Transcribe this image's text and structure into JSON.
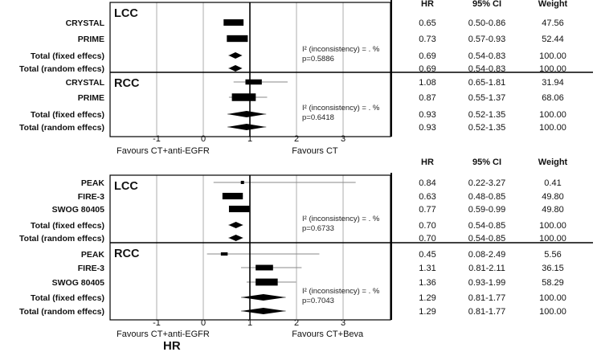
{
  "colors": {
    "frame": "#000000",
    "grid": "#999999",
    "ci_line": "#8a8a8a",
    "marker": "#000000"
  },
  "chart_data": [
    {
      "type": "forest",
      "xlim": [
        -2,
        4
      ],
      "x_ticks": [
        "-1",
        "0",
        "1",
        "2",
        "3"
      ],
      "tick_values": [
        -1,
        0,
        1,
        2,
        3
      ],
      "reference_line": 1,
      "favours_left": "Favours  CT+anti-EGFR",
      "favours_right": "Favours CT",
      "columns": [
        "HR",
        "95% CI",
        "Weight"
      ],
      "groups": [
        {
          "name": "LCC",
          "note_inconsistency": "I² (inconsistency) = . %",
          "note_p": "p=0.5886",
          "rows": [
            {
              "label": "CRYSTAL",
              "hr": 0.65,
              "lo": 0.5,
              "hi": 0.86,
              "hr_text": "0.65",
              "ci_text": "0.50-0.86",
              "weight_text": "47.56",
              "kind": "study",
              "weight": 47.56
            },
            {
              "label": "PRIME",
              "hr": 0.73,
              "lo": 0.57,
              "hi": 0.93,
              "hr_text": "0.73",
              "ci_text": "0.57-0.93",
              "weight_text": "52.44",
              "kind": "study",
              "weight": 52.44
            },
            {
              "label": "Total (fixed effecs)",
              "hr": 0.69,
              "lo": 0.54,
              "hi": 0.83,
              "hr_text": "0.69",
              "ci_text": "0.54-0.83",
              "weight_text": "100.00",
              "kind": "total"
            },
            {
              "label": "Total (random effecs)",
              "hr": 0.69,
              "lo": 0.54,
              "hi": 0.83,
              "hr_text": "0.69",
              "ci_text": "0.54-0.83",
              "weight_text": "100.00",
              "kind": "total"
            }
          ]
        },
        {
          "name": "RCC",
          "note_inconsistency": "I² (inconsistency) = . %",
          "note_p": "p=0.6418",
          "rows": [
            {
              "label": "CRYSTAL",
              "hr": 1.08,
              "lo": 0.65,
              "hi": 1.81,
              "hr_text": "1.08",
              "ci_text": "0.65-1.81",
              "weight_text": "31.94",
              "kind": "study",
              "weight": 31.94
            },
            {
              "label": "PRIME",
              "hr": 0.87,
              "lo": 0.55,
              "hi": 1.37,
              "hr_text": "0.87",
              "ci_text": "0.55-1.37",
              "weight_text": "68.06",
              "kind": "study",
              "weight": 68.06
            },
            {
              "label": "Total (fixed effecs)",
              "hr": 0.93,
              "lo": 0.52,
              "hi": 1.35,
              "hr_text": "0.93",
              "ci_text": "0.52-1.35",
              "weight_text": "100.00",
              "kind": "total"
            },
            {
              "label": "Total (random effecs)",
              "hr": 0.93,
              "lo": 0.52,
              "hi": 1.35,
              "hr_text": "0.93",
              "ci_text": "0.52-1.35",
              "weight_text": "100.00",
              "kind": "total"
            }
          ]
        }
      ]
    },
    {
      "type": "forest",
      "xlim": [
        -2,
        4
      ],
      "x_ticks": [
        "-1",
        "0",
        "1",
        "2",
        "3"
      ],
      "tick_values": [
        -1,
        0,
        1,
        2,
        3
      ],
      "reference_line": 1,
      "favours_left": "Favours  CT+anti-EGFR",
      "favours_right": "Favours CT+Beva",
      "xlabel": "HR",
      "columns": [
        "HR",
        "95% CI",
        "Weight"
      ],
      "groups": [
        {
          "name": "LCC",
          "note_inconsistency": "I² (inconsistency) = . %",
          "note_p": "p=0.6733",
          "rows": [
            {
              "label": "PEAK",
              "hr": 0.84,
              "lo": 0.22,
              "hi": 3.27,
              "hr_text": "0.84",
              "ci_text": "0.22-3.27",
              "weight_text": "0.41",
              "kind": "study",
              "weight": 0.41
            },
            {
              "label": "FIRE-3",
              "hr": 0.63,
              "lo": 0.48,
              "hi": 0.85,
              "hr_text": "0.63",
              "ci_text": "0.48-0.85",
              "weight_text": "49.80",
              "kind": "study",
              "weight": 49.8
            },
            {
              "label": "SWOG 80405",
              "hr": 0.77,
              "lo": 0.59,
              "hi": 0.99,
              "hr_text": "0.77",
              "ci_text": "0.59-0.99",
              "weight_text": "49.80",
              "kind": "study",
              "weight": 49.8
            },
            {
              "label": "Total (fixed effecs)",
              "hr": 0.7,
              "lo": 0.54,
              "hi": 0.85,
              "hr_text": "0.70",
              "ci_text": "0.54-0.85",
              "weight_text": "100.00",
              "kind": "total"
            },
            {
              "label": "Total (random effecs)",
              "hr": 0.7,
              "lo": 0.54,
              "hi": 0.85,
              "hr_text": "0.70",
              "ci_text": "0.54-0.85",
              "weight_text": "100.00",
              "kind": "total"
            }
          ]
        },
        {
          "name": "RCC",
          "note_inconsistency": "I² (inconsistency) = . %",
          "note_p": "p=0.7043",
          "rows": [
            {
              "label": "PEAK",
              "hr": 0.45,
              "lo": 0.08,
              "hi": 2.49,
              "hr_text": "0.45",
              "ci_text": "0.08-2.49",
              "weight_text": "5.56",
              "kind": "study",
              "weight": 5.56
            },
            {
              "label": "FIRE-3",
              "hr": 1.31,
              "lo": 0.81,
              "hi": 2.11,
              "hr_text": "1.31",
              "ci_text": "0.81-2.11",
              "weight_text": "36.15",
              "kind": "study",
              "weight": 36.15
            },
            {
              "label": "SWOG 80405",
              "hr": 1.36,
              "lo": 0.93,
              "hi": 1.99,
              "hr_text": "1.36",
              "ci_text": "0.93-1.99",
              "weight_text": "58.29",
              "kind": "study",
              "weight": 58.29
            },
            {
              "label": "Total (fixed effecs)",
              "hr": 1.29,
              "lo": 0.81,
              "hi": 1.77,
              "hr_text": "1.29",
              "ci_text": "0.81-1.77",
              "weight_text": "100.00",
              "kind": "total"
            },
            {
              "label": "Total (random effecs)",
              "hr": 1.29,
              "lo": 0.81,
              "hi": 1.77,
              "hr_text": "1.29",
              "ci_text": "0.81-1.77",
              "weight_text": "100.00",
              "kind": "total"
            }
          ]
        }
      ]
    }
  ]
}
